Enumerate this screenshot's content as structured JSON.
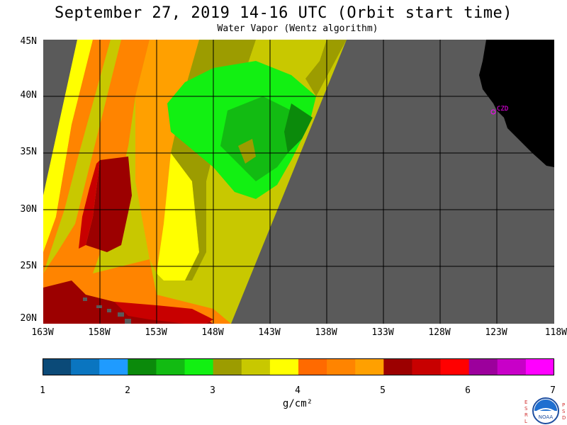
{
  "title": "September 27, 2019  14-16 UTC  (Orbit start time)",
  "subtitle": "Water Vapor (Wentz algorithm)",
  "map": {
    "lat_labels": [
      "45N",
      "40N",
      "35N",
      "30N",
      "25N",
      "20N"
    ],
    "lon_labels": [
      "163W",
      "158W",
      "153W",
      "148W",
      "143W",
      "138W",
      "133W",
      "128W",
      "123W",
      "118W"
    ],
    "land_color": "#000000",
    "nodata_color": "#5a5a5a",
    "gridline_color": "#000000",
    "station_label": "CZD",
    "station_color": "#ff00ff"
  },
  "colorbar": {
    "colors": [
      "#0b4a78",
      "#0a75c0",
      "#1f9bff",
      "#0b8a0b",
      "#12bb12",
      "#12f012",
      "#9c9c00",
      "#c8c800",
      "#ffff00",
      "#ff6a00",
      "#ff8400",
      "#ffa000",
      "#9c0000",
      "#c80000",
      "#ff0000",
      "#9c009c",
      "#c800c8",
      "#ff00ff"
    ],
    "tick_labels": [
      "1",
      "2",
      "3",
      "4",
      "5",
      "6",
      "7"
    ],
    "unit": "g/cm²"
  },
  "logo": {
    "left_letters": [
      "E",
      "S",
      "R",
      "L"
    ],
    "right_letters": [
      "P",
      "S",
      "D"
    ],
    "center_text": "NOAA"
  }
}
